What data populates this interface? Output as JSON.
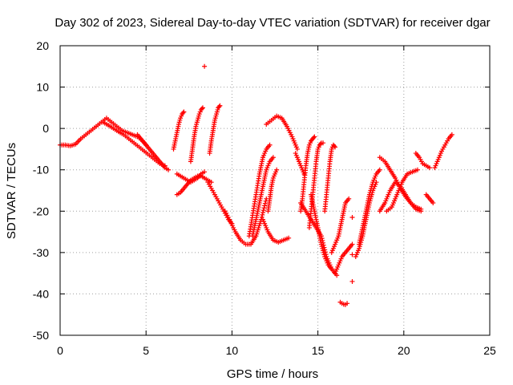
{
  "chart_data": {
    "type": "scatter",
    "title": "Day 302 of 2023, Sidereal Day-to-day VTEC variation (SDTVAR) for receiver dgar",
    "xlabel": "GPS time / hours",
    "ylabel": "SDTVAR / TECUs",
    "xlim": [
      0,
      25
    ],
    "ylim": [
      -50,
      20
    ],
    "xticks": [
      0,
      5,
      10,
      15,
      20,
      25
    ],
    "yticks": [
      -50,
      -40,
      -30,
      -20,
      -10,
      0,
      10,
      20
    ],
    "xtick_labels": [
      "0",
      "5",
      "10",
      "15",
      "20",
      "25"
    ],
    "ytick_labels": [
      "-50",
      "-40",
      "-30",
      "-20",
      "-10",
      "0",
      "10",
      "20"
    ],
    "grid": true,
    "marker": "+",
    "color": "#ff0000",
    "series": [
      {
        "name": "arc-main-0-5",
        "x": [
          0.0,
          0.3,
          0.6,
          0.9,
          1.2,
          1.5,
          1.8,
          2.1,
          2.4,
          2.7,
          3.0,
          3.3,
          3.6,
          3.9,
          4.2,
          4.5,
          4.8,
          5.0
        ],
        "y": [
          -4.0,
          -4.0,
          -4.2,
          -3.8,
          -2.5,
          -1.5,
          -0.5,
          0.5,
          1.5,
          2.5,
          1.5,
          0.5,
          -0.5,
          -1.0,
          -1.5,
          -2.0,
          -3.0,
          -4.0
        ]
      },
      {
        "name": "arc-a",
        "x": [
          2.5,
          2.8,
          3.1,
          3.4,
          3.7,
          4.0,
          4.3,
          4.6,
          4.9,
          5.2,
          5.5,
          5.8,
          6.1
        ],
        "y": [
          1.5,
          0.8,
          0.0,
          -0.8,
          -1.5,
          -2.5,
          -3.5,
          -4.5,
          -5.5,
          -6.5,
          -7.5,
          -8.5,
          -9.0
        ]
      },
      {
        "name": "arc-b",
        "x": [
          4.5,
          4.7,
          4.9,
          5.1,
          5.3,
          5.5,
          5.7,
          5.9,
          6.1,
          6.3
        ],
        "y": [
          -1.5,
          -2.5,
          -3.5,
          -4.5,
          -5.5,
          -6.5,
          -7.5,
          -8.5,
          -9.5,
          -10.0
        ]
      },
      {
        "name": "rise-7",
        "x": [
          6.6,
          6.7,
          6.8,
          6.9,
          7.0,
          7.1,
          7.2
        ],
        "y": [
          -5.0,
          -3.0,
          -1.0,
          1.0,
          2.5,
          3.5,
          4.0
        ]
      },
      {
        "name": "cluster-7-8",
        "x": [
          6.8,
          7.0,
          7.2,
          7.4,
          7.6,
          7.8,
          8.0,
          8.2,
          8.4,
          8.6,
          8.8
        ],
        "y": [
          -16.0,
          -15.5,
          -14.5,
          -13.5,
          -12.5,
          -12.0,
          -11.5,
          -11.5,
          -12.0,
          -12.5,
          -13.0
        ]
      },
      {
        "name": "cluster-7-8b",
        "x": [
          6.8,
          7.0,
          7.2,
          7.4,
          7.6,
          7.8,
          8.0,
          8.2,
          8.4
        ],
        "y": [
          -11.0,
          -11.5,
          -12.0,
          -12.5,
          -13.0,
          -12.5,
          -12.0,
          -11.0,
          -10.5
        ]
      },
      {
        "name": "rise-8",
        "x": [
          7.6,
          7.7,
          7.8,
          7.9,
          8.0,
          8.1,
          8.2,
          8.3
        ],
        "y": [
          -8.0,
          -5.0,
          -2.0,
          0.5,
          2.0,
          3.5,
          4.5,
          5.0
        ]
      },
      {
        "name": "rise-9",
        "x": [
          8.7,
          8.8,
          8.9,
          9.0,
          9.1,
          9.2,
          9.3
        ],
        "y": [
          -6.0,
          -3.0,
          -0.5,
          2.0,
          3.5,
          5.0,
          5.5
        ]
      },
      {
        "name": "outlier-15",
        "x": [
          8.4
        ],
        "y": [
          15.0
        ]
      },
      {
        "name": "fall-9",
        "x": [
          8.6,
          8.8,
          9.0,
          9.2,
          9.4,
          9.6,
          9.8,
          10.0
        ],
        "y": [
          -13.0,
          -14.5,
          -16.0,
          -17.5,
          -19.0,
          -20.5,
          -22.0,
          -23.0
        ]
      },
      {
        "name": "valley-10-12",
        "x": [
          9.6,
          9.9,
          10.2,
          10.5,
          10.8,
          11.1,
          11.4,
          11.7,
          12.0
        ],
        "y": [
          -20.0,
          -22.5,
          -25.0,
          -27.0,
          -28.0,
          -28.0,
          -26.0,
          -22.0,
          -17.0
        ]
      },
      {
        "name": "steep-11",
        "x": [
          11.0,
          11.2,
          11.4,
          11.6,
          11.8,
          12.0,
          12.2
        ],
        "y": [
          -26.0,
          -21.0,
          -16.0,
          -11.0,
          -7.0,
          -5.0,
          -4.0
        ]
      },
      {
        "name": "steep-11b",
        "x": [
          11.2,
          11.4,
          11.6,
          11.8,
          12.0,
          12.2,
          12.4
        ],
        "y": [
          -26.0,
          -22.0,
          -18.0,
          -14.0,
          -10.0,
          -8.0,
          -7.0
        ]
      },
      {
        "name": "peak-12-13",
        "x": [
          12.0,
          12.3,
          12.6,
          12.9,
          13.2,
          13.5,
          13.8
        ],
        "y": [
          1.0,
          2.0,
          3.0,
          2.5,
          0.5,
          -2.0,
          -5.0
        ]
      },
      {
        "name": "valley-12-13",
        "x": [
          11.8,
          12.1,
          12.4,
          12.7,
          13.0,
          13.3
        ],
        "y": [
          -22.0,
          -25.0,
          -27.0,
          -27.5,
          -27.0,
          -26.5
        ]
      },
      {
        "name": "steep-13",
        "x": [
          12.1,
          12.2,
          12.3,
          12.4,
          12.5,
          12.6
        ],
        "y": [
          -20.0,
          -17.0,
          -14.0,
          -12.0,
          -11.0,
          -10.0
        ]
      },
      {
        "name": "descent-14",
        "x": [
          13.7,
          13.8,
          13.9,
          14.0,
          14.1,
          14.2
        ],
        "y": [
          -6.0,
          -7.0,
          -8.0,
          -9.0,
          -10.0,
          -11.0
        ]
      },
      {
        "name": "steep-14",
        "x": [
          14.0,
          14.1,
          14.2,
          14.3,
          14.4,
          14.5,
          14.6,
          14.7,
          14.8
        ],
        "y": [
          -20.0,
          -17.0,
          -13.0,
          -9.0,
          -6.0,
          -4.0,
          -3.0,
          -2.5,
          -2.0
        ]
      },
      {
        "name": "steep-14b",
        "x": [
          14.5,
          14.6,
          14.7,
          14.8,
          14.9,
          15.0,
          15.1,
          15.2,
          15.3
        ],
        "y": [
          -24.0,
          -20.0,
          -16.0,
          -12.0,
          -8.0,
          -5.0,
          -4.0,
          -3.5,
          -3.5
        ]
      },
      {
        "name": "valley-14-16",
        "x": [
          14.0,
          14.3,
          14.6,
          14.9,
          15.2,
          15.5,
          15.8,
          16.1
        ],
        "y": [
          -18.0,
          -20.0,
          -22.0,
          -24.0,
          -26.0,
          -31.0,
          -34.0,
          -35.5
        ]
      },
      {
        "name": "fall-15",
        "x": [
          14.6,
          14.8,
          15.0,
          15.2,
          15.4,
          15.6,
          15.8
        ],
        "y": [
          -16.0,
          -20.0,
          -24.0,
          -28.0,
          -31.0,
          -33.0,
          -34.0
        ]
      },
      {
        "name": "steep-15-16",
        "x": [
          15.4,
          15.5,
          15.6,
          15.7,
          15.8,
          15.9,
          16.0
        ],
        "y": [
          -20.0,
          -16.0,
          -12.0,
          -8.0,
          -5.0,
          -4.0,
          -4.5
        ]
      },
      {
        "name": "cluster-16",
        "x": [
          15.8,
          16.0,
          16.2,
          16.4,
          16.6,
          16.8
        ],
        "y": [
          -30.0,
          -28.0,
          -26.0,
          -22.0,
          -18.0,
          -17.0
        ]
      },
      {
        "name": "cluster-16b",
        "x": [
          16.0,
          16.2,
          16.4,
          16.6,
          16.8,
          17.0
        ],
        "y": [
          -35.0,
          -33.0,
          -31.0,
          -30.0,
          -29.0,
          -28.0
        ]
      },
      {
        "name": "low-16-5",
        "x": [
          16.3,
          16.4,
          16.5,
          16.6,
          16.7
        ],
        "y": [
          -42.0,
          -42.3,
          -42.5,
          -42.6,
          -42.3
        ]
      },
      {
        "name": "outlier-37",
        "x": [
          17.0
        ],
        "y": [
          -37.0
        ]
      },
      {
        "name": "outlier-31",
        "x": [
          17.0
        ],
        "y": [
          -30.5
        ]
      },
      {
        "name": "outlier-22",
        "x": [
          17.0
        ],
        "y": [
          -21.5
        ]
      },
      {
        "name": "rise-17-18",
        "x": [
          17.2,
          17.4,
          17.6,
          17.8,
          18.0,
          18.2,
          18.4
        ],
        "y": [
          -31.0,
          -29.0,
          -26.0,
          -22.0,
          -18.0,
          -15.0,
          -13.0
        ]
      },
      {
        "name": "rise-17-18b",
        "x": [
          17.4,
          17.6,
          17.8,
          18.0,
          18.2,
          18.4,
          18.6
        ],
        "y": [
          -28.0,
          -24.0,
          -20.0,
          -16.0,
          -13.0,
          -11.0,
          -10.0
        ]
      },
      {
        "name": "arc-18-21",
        "x": [
          18.6,
          18.9,
          19.2,
          19.5,
          19.8,
          20.1,
          20.4,
          20.7,
          21.0
        ],
        "y": [
          -7.0,
          -8.0,
          -10.0,
          -12.0,
          -14.5,
          -16.5,
          -18.0,
          -19.0,
          -19.5
        ]
      },
      {
        "name": "wave-18-21",
        "x": [
          18.6,
          18.9,
          19.2,
          19.5,
          19.8,
          20.1,
          20.4,
          20.7,
          21.0
        ],
        "y": [
          -20.0,
          -18.0,
          -15.0,
          -13.0,
          -14.0,
          -16.0,
          -18.0,
          -19.5,
          -20.0
        ]
      },
      {
        "name": "wave-19-21",
        "x": [
          19.0,
          19.3,
          19.6,
          19.9,
          20.2,
          20.5,
          20.8
        ],
        "y": [
          -20.0,
          -19.0,
          -16.0,
          -13.0,
          -11.0,
          -10.5,
          -10.0
        ]
      },
      {
        "name": "rise-22-23",
        "x": [
          21.8,
          22.0,
          22.2,
          22.4,
          22.6,
          22.8
        ],
        "y": [
          -9.5,
          -7.5,
          -5.5,
          -4.0,
          -2.5,
          -1.5
        ]
      },
      {
        "name": "misc-21",
        "x": [
          20.7,
          20.9,
          21.1,
          21.3,
          21.5
        ],
        "y": [
          -6.0,
          -7.0,
          -8.5,
          -9.0,
          -9.5
        ]
      },
      {
        "name": "misc-21b",
        "x": [
          21.3,
          21.5,
          21.7
        ],
        "y": [
          -16.0,
          -17.0,
          -18.0
        ]
      }
    ]
  }
}
